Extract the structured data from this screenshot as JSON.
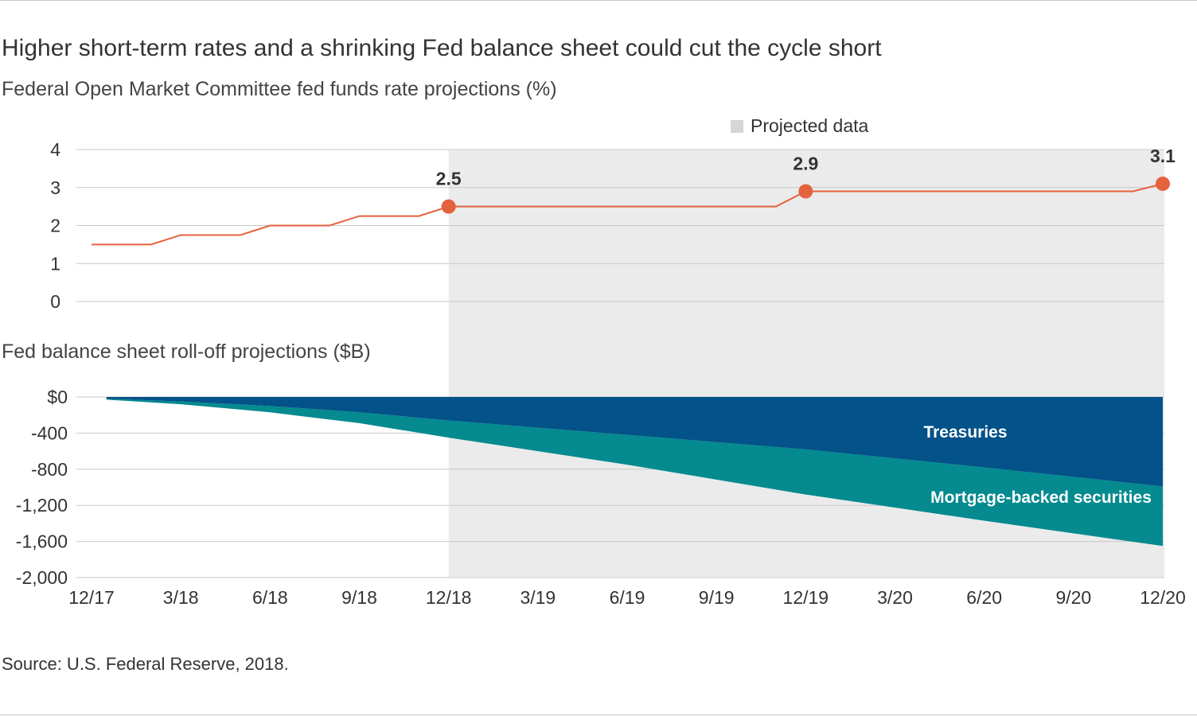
{
  "title": "Higher short-term rates and a shrinking Fed balance sheet could cut the cycle short",
  "source": "Source: U.S. Federal Reserve, 2018.",
  "colors": {
    "rate_line": "#e5623f",
    "treasuries": "#035289",
    "mbs": "#048a8f",
    "projected_shade": "#ebebeb",
    "gridline": "#c8c8c8"
  },
  "legend": {
    "projected_label": "Projected data"
  },
  "chart_data": [
    {
      "type": "line",
      "title": "Federal Open Market Committee fed funds rate projections (%)",
      "ylim": [
        0,
        4
      ],
      "yticks": [
        "0",
        "1",
        "2",
        "3",
        "4"
      ],
      "x_index_range": [
        0,
        36
      ],
      "series": [
        {
          "name": "Fed funds rate",
          "points": [
            [
              0,
              1.5
            ],
            [
              2,
              1.5
            ],
            [
              3,
              1.75
            ],
            [
              5,
              1.75
            ],
            [
              6,
              2.0
            ],
            [
              8,
              2.0
            ],
            [
              9,
              2.25
            ],
            [
              11,
              2.25
            ],
            [
              12,
              2.5
            ],
            [
              23,
              2.5
            ],
            [
              24,
              2.9
            ],
            [
              35,
              2.9
            ],
            [
              36,
              3.1
            ]
          ]
        }
      ],
      "markers": [
        {
          "x": 12,
          "value": 2.5,
          "label": "2.5"
        },
        {
          "x": 24,
          "value": 2.9,
          "label": "2.9"
        },
        {
          "x": 36,
          "value": 3.1,
          "label": "3.1"
        }
      ],
      "projected_from_x": 12
    },
    {
      "type": "area",
      "title": "Fed balance sheet roll-off projections ($B)",
      "ylim": [
        -2000,
        0
      ],
      "yticks": [
        "$0",
        "-400",
        "-800",
        "-1,200",
        "-1,600",
        "-2,000"
      ],
      "x_index_range": [
        0,
        36
      ],
      "series": [
        {
          "name": "Treasuries",
          "label": "Treasuries",
          "points": [
            [
              0.5,
              -20
            ],
            [
              3,
              -50
            ],
            [
              6,
              -100
            ],
            [
              9,
              -170
            ],
            [
              12,
              -260
            ],
            [
              18,
              -420
            ],
            [
              24,
              -580
            ],
            [
              30,
              -780
            ],
            [
              36,
              -990
            ]
          ]
        },
        {
          "name": "Mortgage-backed securities",
          "label": "Mortgage-backed securities",
          "points": [
            [
              0.5,
              -30
            ],
            [
              3,
              -80
            ],
            [
              6,
              -170
            ],
            [
              9,
              -290
            ],
            [
              12,
              -450
            ],
            [
              18,
              -750
            ],
            [
              24,
              -1080
            ],
            [
              30,
              -1370
            ],
            [
              36,
              -1650
            ]
          ]
        }
      ]
    }
  ],
  "x_axis": {
    "ticks": [
      "12/17",
      "3/18",
      "6/18",
      "9/18",
      "12/18",
      "3/19",
      "6/19",
      "9/19",
      "12/19",
      "3/20",
      "6/20",
      "9/20",
      "12/20"
    ],
    "tick_index": [
      0,
      3,
      6,
      9,
      12,
      15,
      18,
      21,
      24,
      27,
      30,
      33,
      36
    ]
  }
}
